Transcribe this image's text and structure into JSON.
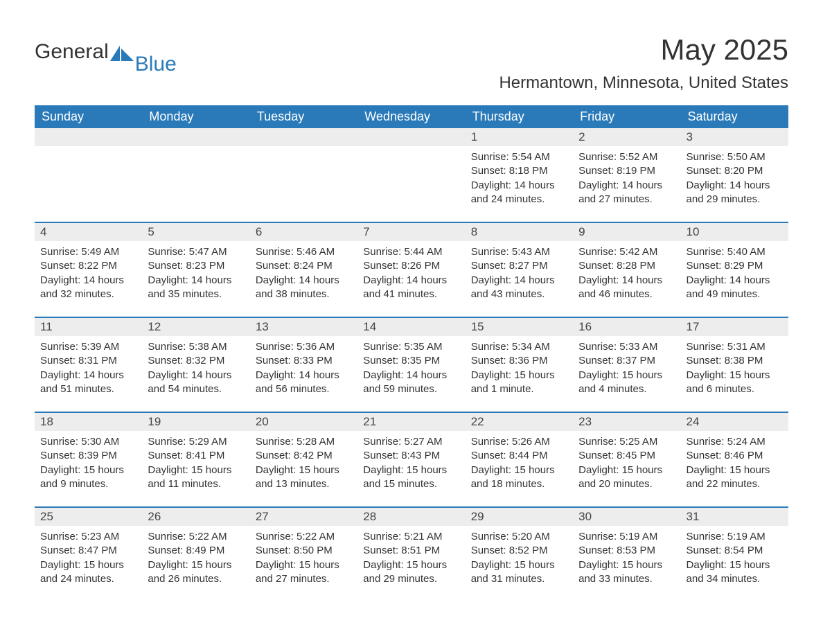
{
  "logo": {
    "main": "General",
    "accent": "Blue"
  },
  "title": "May 2025",
  "location": "Hermantown, Minnesota, United States",
  "colors": {
    "brand": "#2a7ab9",
    "band_bg": "#ededed",
    "text": "#333333",
    "white": "#ffffff"
  },
  "table": {
    "columns": [
      "Sunday",
      "Monday",
      "Tuesday",
      "Wednesday",
      "Thursday",
      "Friday",
      "Saturday"
    ],
    "weeks": [
      [
        {
          "n": "",
          "sr": "",
          "ss": "",
          "dl": ""
        },
        {
          "n": "",
          "sr": "",
          "ss": "",
          "dl": ""
        },
        {
          "n": "",
          "sr": "",
          "ss": "",
          "dl": ""
        },
        {
          "n": "",
          "sr": "",
          "ss": "",
          "dl": ""
        },
        {
          "n": "1",
          "sr": "Sunrise: 5:54 AM",
          "ss": "Sunset: 8:18 PM",
          "dl": "Daylight: 14 hours and 24 minutes."
        },
        {
          "n": "2",
          "sr": "Sunrise: 5:52 AM",
          "ss": "Sunset: 8:19 PM",
          "dl": "Daylight: 14 hours and 27 minutes."
        },
        {
          "n": "3",
          "sr": "Sunrise: 5:50 AM",
          "ss": "Sunset: 8:20 PM",
          "dl": "Daylight: 14 hours and 29 minutes."
        }
      ],
      [
        {
          "n": "4",
          "sr": "Sunrise: 5:49 AM",
          "ss": "Sunset: 8:22 PM",
          "dl": "Daylight: 14 hours and 32 minutes."
        },
        {
          "n": "5",
          "sr": "Sunrise: 5:47 AM",
          "ss": "Sunset: 8:23 PM",
          "dl": "Daylight: 14 hours and 35 minutes."
        },
        {
          "n": "6",
          "sr": "Sunrise: 5:46 AM",
          "ss": "Sunset: 8:24 PM",
          "dl": "Daylight: 14 hours and 38 minutes."
        },
        {
          "n": "7",
          "sr": "Sunrise: 5:44 AM",
          "ss": "Sunset: 8:26 PM",
          "dl": "Daylight: 14 hours and 41 minutes."
        },
        {
          "n": "8",
          "sr": "Sunrise: 5:43 AM",
          "ss": "Sunset: 8:27 PM",
          "dl": "Daylight: 14 hours and 43 minutes."
        },
        {
          "n": "9",
          "sr": "Sunrise: 5:42 AM",
          "ss": "Sunset: 8:28 PM",
          "dl": "Daylight: 14 hours and 46 minutes."
        },
        {
          "n": "10",
          "sr": "Sunrise: 5:40 AM",
          "ss": "Sunset: 8:29 PM",
          "dl": "Daylight: 14 hours and 49 minutes."
        }
      ],
      [
        {
          "n": "11",
          "sr": "Sunrise: 5:39 AM",
          "ss": "Sunset: 8:31 PM",
          "dl": "Daylight: 14 hours and 51 minutes."
        },
        {
          "n": "12",
          "sr": "Sunrise: 5:38 AM",
          "ss": "Sunset: 8:32 PM",
          "dl": "Daylight: 14 hours and 54 minutes."
        },
        {
          "n": "13",
          "sr": "Sunrise: 5:36 AM",
          "ss": "Sunset: 8:33 PM",
          "dl": "Daylight: 14 hours and 56 minutes."
        },
        {
          "n": "14",
          "sr": "Sunrise: 5:35 AM",
          "ss": "Sunset: 8:35 PM",
          "dl": "Daylight: 14 hours and 59 minutes."
        },
        {
          "n": "15",
          "sr": "Sunrise: 5:34 AM",
          "ss": "Sunset: 8:36 PM",
          "dl": "Daylight: 15 hours and 1 minute."
        },
        {
          "n": "16",
          "sr": "Sunrise: 5:33 AM",
          "ss": "Sunset: 8:37 PM",
          "dl": "Daylight: 15 hours and 4 minutes."
        },
        {
          "n": "17",
          "sr": "Sunrise: 5:31 AM",
          "ss": "Sunset: 8:38 PM",
          "dl": "Daylight: 15 hours and 6 minutes."
        }
      ],
      [
        {
          "n": "18",
          "sr": "Sunrise: 5:30 AM",
          "ss": "Sunset: 8:39 PM",
          "dl": "Daylight: 15 hours and 9 minutes."
        },
        {
          "n": "19",
          "sr": "Sunrise: 5:29 AM",
          "ss": "Sunset: 8:41 PM",
          "dl": "Daylight: 15 hours and 11 minutes."
        },
        {
          "n": "20",
          "sr": "Sunrise: 5:28 AM",
          "ss": "Sunset: 8:42 PM",
          "dl": "Daylight: 15 hours and 13 minutes."
        },
        {
          "n": "21",
          "sr": "Sunrise: 5:27 AM",
          "ss": "Sunset: 8:43 PM",
          "dl": "Daylight: 15 hours and 15 minutes."
        },
        {
          "n": "22",
          "sr": "Sunrise: 5:26 AM",
          "ss": "Sunset: 8:44 PM",
          "dl": "Daylight: 15 hours and 18 minutes."
        },
        {
          "n": "23",
          "sr": "Sunrise: 5:25 AM",
          "ss": "Sunset: 8:45 PM",
          "dl": "Daylight: 15 hours and 20 minutes."
        },
        {
          "n": "24",
          "sr": "Sunrise: 5:24 AM",
          "ss": "Sunset: 8:46 PM",
          "dl": "Daylight: 15 hours and 22 minutes."
        }
      ],
      [
        {
          "n": "25",
          "sr": "Sunrise: 5:23 AM",
          "ss": "Sunset: 8:47 PM",
          "dl": "Daylight: 15 hours and 24 minutes."
        },
        {
          "n": "26",
          "sr": "Sunrise: 5:22 AM",
          "ss": "Sunset: 8:49 PM",
          "dl": "Daylight: 15 hours and 26 minutes."
        },
        {
          "n": "27",
          "sr": "Sunrise: 5:22 AM",
          "ss": "Sunset: 8:50 PM",
          "dl": "Daylight: 15 hours and 27 minutes."
        },
        {
          "n": "28",
          "sr": "Sunrise: 5:21 AM",
          "ss": "Sunset: 8:51 PM",
          "dl": "Daylight: 15 hours and 29 minutes."
        },
        {
          "n": "29",
          "sr": "Sunrise: 5:20 AM",
          "ss": "Sunset: 8:52 PM",
          "dl": "Daylight: 15 hours and 31 minutes."
        },
        {
          "n": "30",
          "sr": "Sunrise: 5:19 AM",
          "ss": "Sunset: 8:53 PM",
          "dl": "Daylight: 15 hours and 33 minutes."
        },
        {
          "n": "31",
          "sr": "Sunrise: 5:19 AM",
          "ss": "Sunset: 8:54 PM",
          "dl": "Daylight: 15 hours and 34 minutes."
        }
      ]
    ]
  }
}
